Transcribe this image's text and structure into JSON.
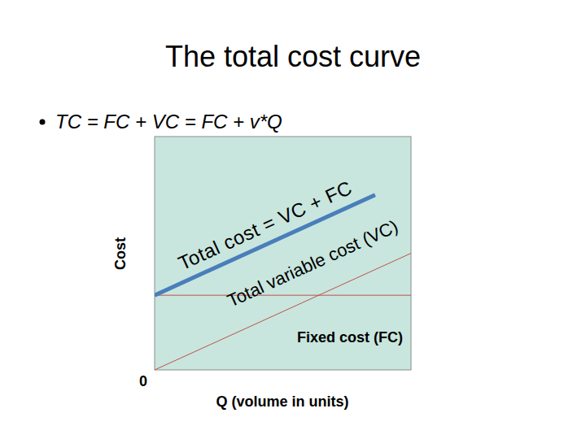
{
  "chart_data": {
    "type": "line",
    "title": "The total cost curve",
    "subtitle": "TC = FC + VC = FC + v*Q",
    "x_label": "Q (volume in units)",
    "y_label": "Cost",
    "x": [
      0,
      8.6,
      10
    ],
    "xlim": [
      0,
      10
    ],
    "ylim": [
      0,
      10
    ],
    "xticks": [
      0
    ],
    "yticks": [],
    "tick_labels": "x",
    "grid": false,
    "series": [
      {
        "name": "Total cost = VC + FC",
        "color": "#4a7ebb",
        "values": [
          3.2,
          7.5,
          null
        ]
      },
      {
        "name": "Total variable cost (VC)",
        "color": "#c0504d",
        "values": [
          0,
          4.3,
          5
        ]
      },
      {
        "name": "Fixed cost (FC)",
        "color": "#c0504d",
        "values": [
          3.2,
          3.2,
          3.2
        ]
      }
    ]
  }
}
